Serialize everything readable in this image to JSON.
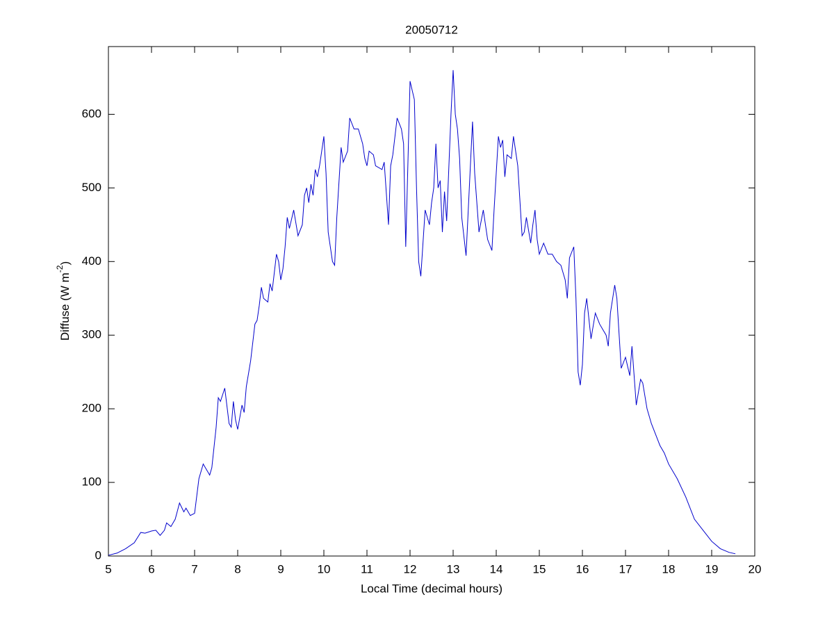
{
  "chart_data": {
    "type": "line",
    "title": "20050712",
    "xlabel": "Local Time (decimal hours)",
    "ylabel": {
      "text": "Diffuse (W m",
      "superscript": "-2",
      "suffix": ")"
    },
    "xlim": [
      5,
      20
    ],
    "xticks": [
      5,
      6,
      7,
      8,
      9,
      10,
      11,
      12,
      13,
      14,
      15,
      16,
      17,
      18,
      19,
      20
    ],
    "ylim": [
      0,
      692
    ],
    "yticks": [
      0,
      100,
      200,
      300,
      400,
      500,
      600
    ],
    "grid": false,
    "series": [
      {
        "color": "#0000cc",
        "x": [
          5.0,
          5.2,
          5.4,
          5.6,
          5.75,
          5.85,
          6.0,
          6.1,
          6.2,
          6.3,
          6.35,
          6.45,
          6.55,
          6.65,
          6.75,
          6.8,
          6.9,
          7.0,
          7.1,
          7.2,
          7.3,
          7.35,
          7.4,
          7.5,
          7.55,
          7.6,
          7.7,
          7.8,
          7.85,
          7.9,
          7.95,
          8.0,
          8.1,
          8.15,
          8.2,
          8.3,
          8.4,
          8.45,
          8.5,
          8.55,
          8.6,
          8.7,
          8.75,
          8.8,
          8.9,
          8.95,
          9.0,
          9.05,
          9.1,
          9.15,
          9.2,
          9.3,
          9.4,
          9.5,
          9.55,
          9.6,
          9.65,
          9.7,
          9.75,
          9.8,
          9.85,
          9.9,
          10.0,
          10.05,
          10.1,
          10.2,
          10.25,
          10.3,
          10.4,
          10.45,
          10.55,
          10.6,
          10.7,
          10.8,
          10.9,
          10.95,
          11.0,
          11.05,
          11.15,
          11.2,
          11.35,
          11.4,
          11.5,
          11.55,
          11.6,
          11.7,
          11.8,
          11.85,
          11.9,
          12.0,
          12.1,
          12.15,
          12.2,
          12.25,
          12.35,
          12.45,
          12.5,
          12.55,
          12.6,
          12.65,
          12.7,
          12.75,
          12.8,
          12.85,
          12.95,
          13.0,
          13.05,
          13.1,
          13.15,
          13.2,
          13.3,
          13.4,
          13.45,
          13.5,
          13.6,
          13.7,
          13.8,
          13.9,
          13.95,
          14.0,
          14.05,
          14.1,
          14.15,
          14.2,
          14.25,
          14.35,
          14.4,
          14.5,
          14.6,
          14.65,
          14.7,
          14.8,
          14.85,
          14.9,
          14.95,
          15.0,
          15.1,
          15.2,
          15.3,
          15.4,
          15.5,
          15.6,
          15.65,
          15.7,
          15.8,
          15.85,
          15.9,
          15.95,
          16.0,
          16.05,
          16.1,
          16.2,
          16.3,
          16.4,
          16.55,
          16.6,
          16.65,
          16.75,
          16.8,
          16.9,
          17.0,
          17.1,
          17.15,
          17.25,
          17.35,
          17.4,
          17.5,
          17.6,
          17.7,
          17.8,
          17.9,
          18.0,
          18.2,
          18.4,
          18.6,
          18.8,
          19.0,
          19.2,
          19.4,
          19.55
        ],
        "values": [
          1,
          4,
          10,
          18,
          32,
          31,
          34,
          35,
          28,
          35,
          45,
          40,
          50,
          72,
          60,
          65,
          55,
          58,
          105,
          125,
          115,
          110,
          120,
          175,
          215,
          210,
          228,
          180,
          175,
          210,
          185,
          172,
          205,
          195,
          230,
          265,
          315,
          320,
          340,
          365,
          350,
          345,
          370,
          360,
          410,
          400,
          375,
          390,
          420,
          460,
          445,
          470,
          435,
          450,
          490,
          500,
          480,
          505,
          490,
          525,
          515,
          530,
          570,
          520,
          440,
          400,
          395,
          460,
          555,
          535,
          550,
          595,
          580,
          580,
          560,
          540,
          530,
          550,
          545,
          530,
          525,
          535,
          450,
          530,
          545,
          595,
          580,
          560,
          420,
          645,
          620,
          500,
          400,
          380,
          470,
          450,
          480,
          500,
          560,
          500,
          510,
          440,
          495,
          455,
          600,
          660,
          600,
          580,
          540,
          460,
          408,
          530,
          590,
          520,
          440,
          470,
          430,
          415,
          470,
          520,
          570,
          555,
          565,
          515,
          545,
          540,
          570,
          530,
          435,
          440,
          460,
          425,
          450,
          470,
          430,
          410,
          425,
          410,
          410,
          400,
          395,
          375,
          350,
          405,
          420,
          350,
          250,
          232,
          260,
          330,
          350,
          295,
          330,
          315,
          300,
          285,
          330,
          368,
          350,
          255,
          270,
          245,
          285,
          205,
          240,
          235,
          200,
          180,
          165,
          150,
          140,
          125,
          105,
          80,
          50,
          35,
          20,
          10,
          5,
          3
        ]
      }
    ]
  }
}
